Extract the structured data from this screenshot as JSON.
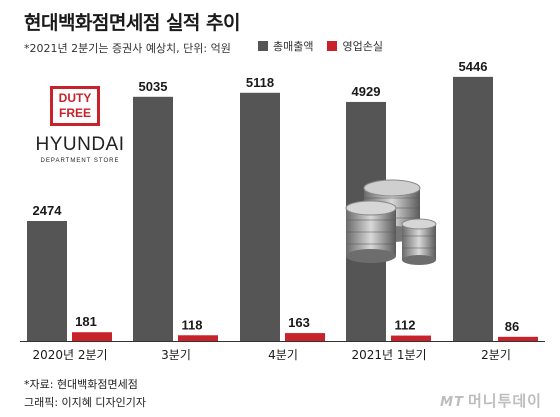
{
  "title": "현대백화점면세점 실적 추이",
  "subtitle": "*2021년 2분기는 증권사 예상치, 단위: 억원",
  "legend": [
    {
      "label": "총매출액",
      "color": "#555555"
    },
    {
      "label": "영업손실",
      "color": "#c8222a"
    }
  ],
  "chart_data": {
    "type": "bar",
    "categories": [
      "2020년 2분기",
      "3분기",
      "4분기",
      "2021년 1분기",
      "2분기"
    ],
    "series": [
      {
        "name": "총매출액",
        "color": "#555555",
        "values": [
          2474,
          5035,
          5118,
          4929,
          5446
        ]
      },
      {
        "name": "영업손실",
        "color": "#c8222a",
        "values": [
          181,
          118,
          163,
          112,
          86
        ]
      }
    ]
  },
  "logo": {
    "box_line1": "DUTY",
    "box_line2": "FREE",
    "main": "HYUNDAI",
    "sub": "DEPARTMENT STORE"
  },
  "footer": {
    "source": "*자료: 현대백화점면세점",
    "graphic": "그래픽: 이지혜 디자인기자"
  },
  "watermark": {
    "mt": "MT",
    "text": "머니투데이"
  }
}
